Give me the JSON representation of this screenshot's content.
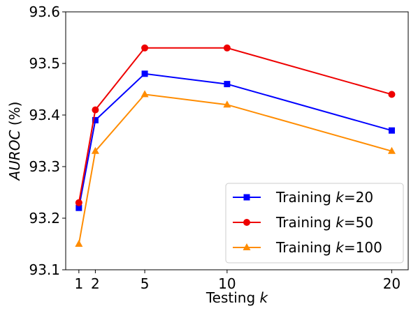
{
  "chart_data": {
    "type": "line",
    "title": "",
    "xlabel": {
      "prefix": "Testing ",
      "var": "k"
    },
    "ylabel": {
      "var": "AUROC",
      "suffix": " (%)"
    },
    "x": [
      1,
      2,
      5,
      10,
      20
    ],
    "xticks": [
      "1",
      "2",
      "5",
      "10",
      "20"
    ],
    "xlim": [
      0.2,
      21.0
    ],
    "ylim": [
      93.1,
      93.6
    ],
    "yticks": [
      "93.1",
      "93.2",
      "93.3",
      "93.4",
      "93.5",
      "93.6"
    ],
    "grid": false,
    "legend_position": "lower-right",
    "series": [
      {
        "name_prefix": "Training ",
        "name_var": "k",
        "name_suffix": "=20",
        "color": "#0000ff",
        "marker": "square",
        "values": [
          93.22,
          93.39,
          93.48,
          93.46,
          93.37
        ]
      },
      {
        "name_prefix": "Training ",
        "name_var": "k",
        "name_suffix": "=50",
        "color": "#ee0000",
        "marker": "circle",
        "values": [
          93.23,
          93.41,
          93.53,
          93.53,
          93.44
        ]
      },
      {
        "name_prefix": "Training ",
        "name_var": "k",
        "name_suffix": "=100",
        "color": "#ff8c00",
        "marker": "triangle",
        "values": [
          93.15,
          93.33,
          93.44,
          93.42,
          93.33
        ]
      }
    ]
  }
}
